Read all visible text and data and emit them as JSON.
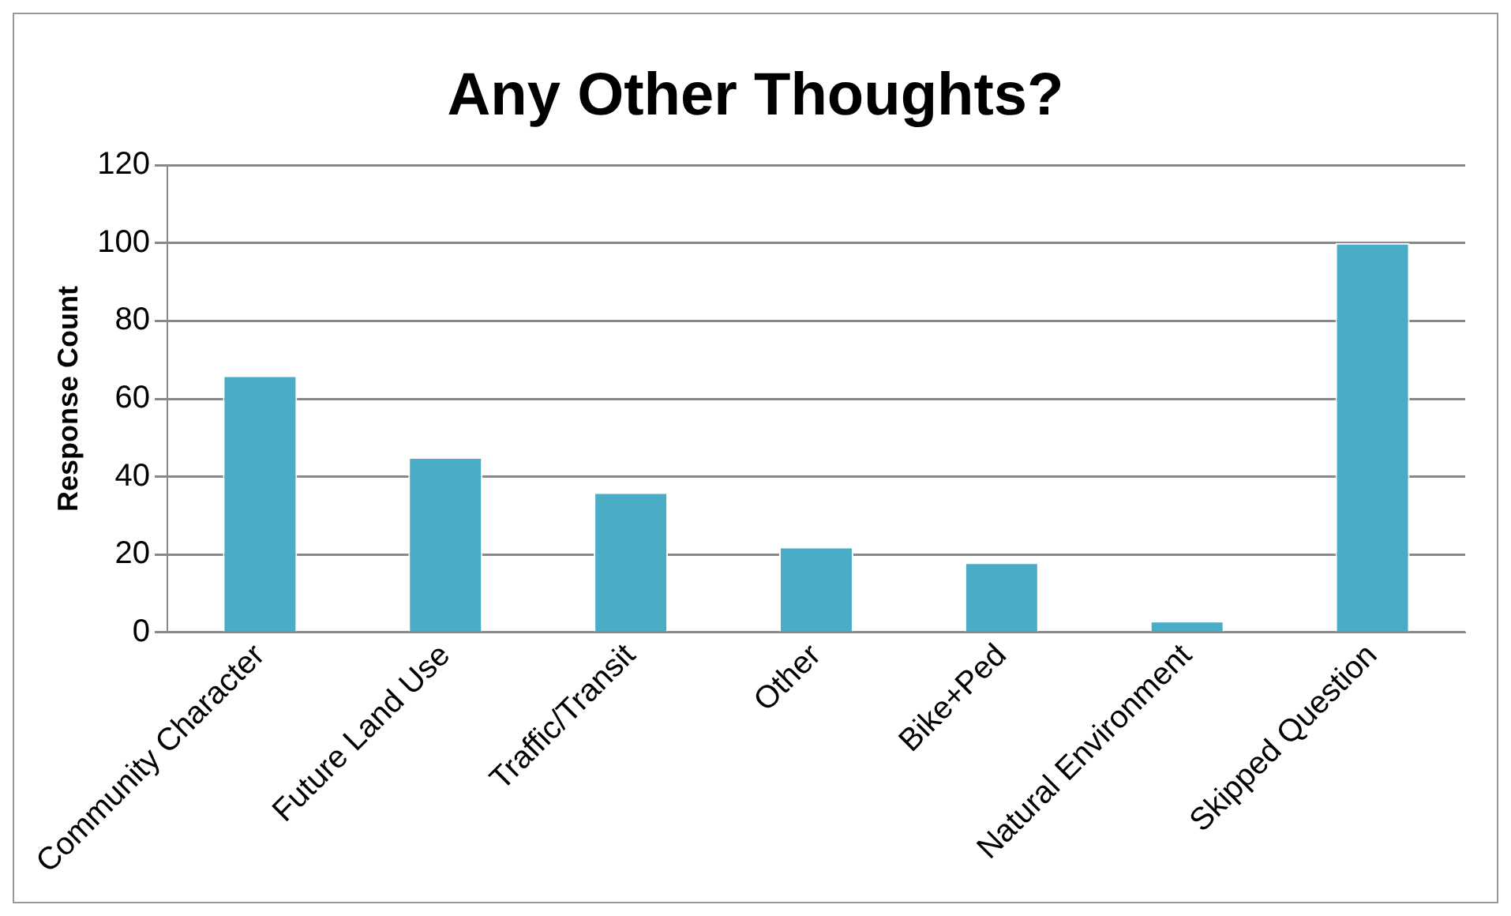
{
  "chart_data": {
    "type": "bar",
    "title": "Any Other Thoughts?",
    "ylabel": "Response Count",
    "categories": [
      "Community Character",
      "Future Land Use",
      "Traffic/Transit",
      "Other",
      "Bike+Ped",
      "Natural Environment",
      "Skipped Question"
    ],
    "values": [
      66,
      45,
      36,
      22,
      18,
      3,
      100
    ],
    "color": "#4bacc6",
    "ylim": [
      0,
      120
    ],
    "yticks": [
      0,
      20,
      40,
      60,
      80,
      100,
      120
    ],
    "grid": "y"
  }
}
